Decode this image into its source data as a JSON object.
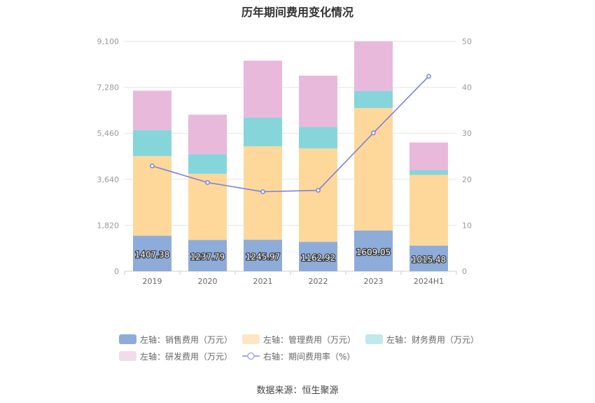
{
  "chart_data": {
    "type": "bar",
    "title": "历年期间费用变化情况",
    "categories": [
      "2019",
      "2020",
      "2021",
      "2022",
      "2023",
      "2024H1"
    ],
    "left_axis": {
      "ticks": [
        "0",
        "1,820",
        "3,640",
        "5,460",
        "7,280",
        "9,100"
      ],
      "ylim": [
        0,
        9100
      ]
    },
    "right_axis": {
      "ticks": [
        "0",
        "10",
        "20",
        "30",
        "40",
        "50"
      ],
      "ylim": [
        0,
        50
      ]
    },
    "series": [
      {
        "name": "左轴：销售费用（万元）",
        "type": "bar",
        "stack": true,
        "color": "#8eacd9",
        "values": [
          1407.38,
          1237.79,
          1245.97,
          1162.92,
          1609.05,
          1015.48
        ]
      },
      {
        "name": "左轴：管理费用（万元）",
        "type": "bar",
        "stack": true,
        "color": "#fed89a",
        "values": [
          3150,
          2620,
          3700,
          3700,
          4850,
          2800
        ]
      },
      {
        "name": "左轴：财务费用（万元）",
        "type": "bar",
        "stack": true,
        "color": "#86d5da",
        "values": [
          1030,
          780,
          1130,
          840,
          680,
          180
        ]
      },
      {
        "name": "左轴：研发费用（万元）",
        "type": "bar",
        "stack": true,
        "color": "#e8b9da",
        "values": [
          1560,
          1560,
          2260,
          2040,
          1960,
          1100
        ]
      },
      {
        "name": "右轴：期间费用率（%）",
        "type": "line",
        "axis": "right",
        "color": "#7b7fe0",
        "values": [
          22.9,
          19.3,
          17.3,
          17.6,
          30.1,
          42.4
        ]
      }
    ],
    "data_labels": [
      "1407.38",
      "1237.79",
      "1245.97",
      "1162.92",
      "1609.05",
      "1015.48"
    ],
    "grid": true,
    "legend_position": "bottom"
  },
  "footer": {
    "source": "数据来源：恒生聚源"
  }
}
